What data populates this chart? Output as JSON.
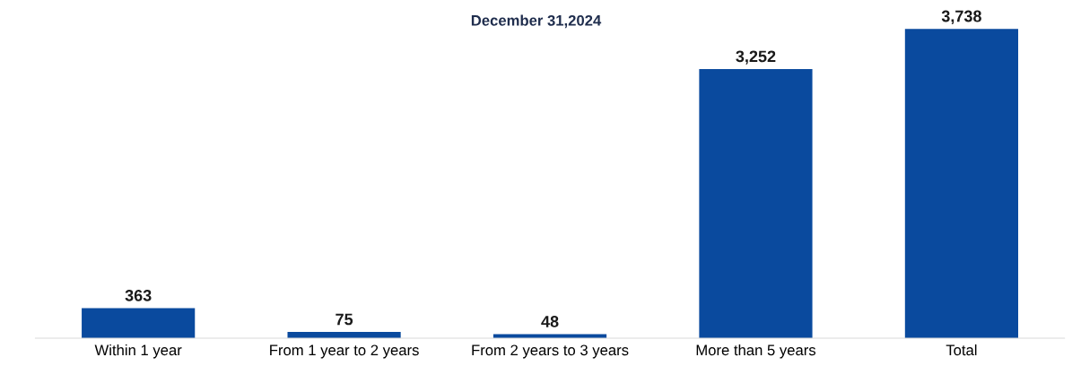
{
  "chart_data": {
    "type": "bar",
    "title": "December 31,2024",
    "categories": [
      "Within 1 year",
      "From 1 year to 2 years",
      "From 2 years to 3 years",
      "More than 5 years",
      "Total"
    ],
    "values": [
      363,
      75,
      48,
      3252,
      3738
    ],
    "value_labels": [
      "363",
      "75",
      "48",
      "3,252",
      "3,738"
    ],
    "color": "#0a4a9e",
    "relative": false
  }
}
